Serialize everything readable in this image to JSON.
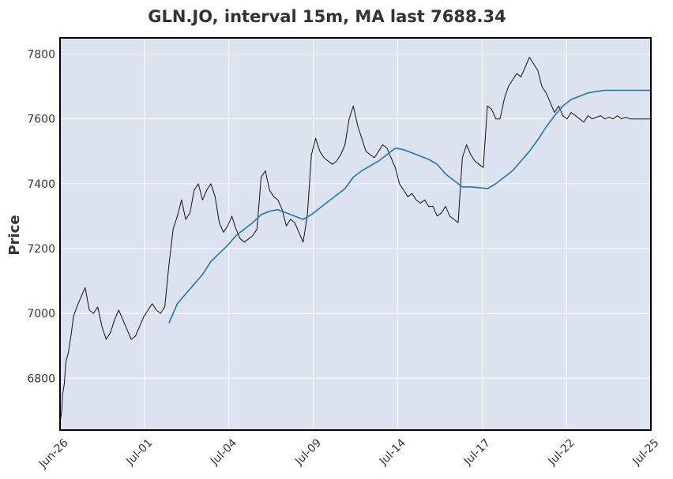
{
  "chart_data": {
    "type": "line",
    "title": "GLN.JO, interval 15m, MA last 7688.34",
    "xlabel": "",
    "ylabel": "Price",
    "ylim": [
      6640,
      7850
    ],
    "yticks": [
      6800,
      7000,
      7200,
      7400,
      7600,
      7800
    ],
    "xticks": [
      "Jun-26",
      "Jul-01",
      "Jul-04",
      "Jul-09",
      "Jul-14",
      "Jul-17",
      "Jul-22",
      "Jul-25"
    ],
    "grid": true,
    "colors": {
      "price": "#111111",
      "ma": "#1f77b4",
      "background": "#dde2ef",
      "grid": "#ffffff"
    },
    "series": [
      {
        "kind": "price",
        "x": [
          0,
          0.2,
          0.3,
          0.5,
          0.7,
          1.0,
          1.3,
          1.6,
          2.0,
          2.5,
          3.0,
          3.5,
          4.0,
          4.5,
          5.0,
          5.5,
          6.0,
          6.5,
          7.0,
          7.5,
          8.0,
          8.5,
          9.0,
          9.5,
          10.0,
          10.5,
          11.0,
          11.5,
          12.0,
          12.5,
          13.0,
          13.5,
          14.0,
          14.5,
          15.0,
          15.5,
          16.0,
          16.5,
          17.0,
          17.5,
          18.0,
          18.5,
          19.0,
          19.5,
          20.0,
          20.5,
          21.0,
          21.5,
          22.0,
          22.5,
          23.0,
          23.5,
          24.0,
          24.5,
          25.0,
          25.5,
          26.0,
          26.5,
          27.0,
          27.5,
          28.0,
          28.5,
          29.0,
          29.5,
          30.0,
          30.5,
          31.0,
          31.5,
          32.0,
          32.5,
          33.0,
          33.5,
          34.0,
          34.5,
          35.0,
          35.5,
          36.0,
          36.5,
          37.0,
          37.5,
          38.0,
          38.5,
          39.0,
          39.5,
          40.0,
          40.5,
          41.0,
          41.5,
          42.0,
          42.5,
          43.0,
          43.5,
          44.0,
          44.5,
          45.0,
          45.5,
          46.0,
          46.5,
          47.0,
          47.5,
          48.0,
          48.5,
          49.0,
          49.5,
          50.0,
          50.5,
          51.0,
          51.5,
          52.0,
          52.5,
          53.0,
          53.5,
          54.0,
          54.5,
          55.0,
          55.5,
          56.0,
          56.5,
          57.0,
          57.5,
          58.0,
          58.5,
          59.0,
          59.5,
          60.0,
          60.5,
          61.0,
          61.5,
          62.0,
          62.5,
          63.0,
          63.5,
          64.0,
          64.5,
          65.0,
          65.5,
          66.0,
          66.5,
          67.0,
          67.5,
          68.0,
          68.5,
          69.0,
          69.5,
          70.0,
          70.5
        ],
        "y": [
          6660,
          6700,
          6750,
          6780,
          6850,
          6880,
          6930,
          6990,
          7020,
          7050,
          7080,
          7010,
          7000,
          7020,
          6960,
          6920,
          6940,
          6980,
          7010,
          6980,
          6950,
          6920,
          6930,
          6960,
          6990,
          7010,
          7030,
          7010,
          7000,
          7020,
          7150,
          7260,
          7300,
          7350,
          7290,
          7310,
          7380,
          7400,
          7350,
          7380,
          7400,
          7360,
          7280,
          7250,
          7270,
          7300,
          7260,
          7230,
          7220,
          7230,
          7240,
          7260,
          7420,
          7440,
          7380,
          7360,
          7350,
          7320,
          7270,
          7290,
          7280,
          7250,
          7220,
          7300,
          7490,
          7540,
          7500,
          7480,
          7470,
          7460,
          7470,
          7490,
          7520,
          7600,
          7640,
          7580,
          7540,
          7500,
          7490,
          7480,
          7500,
          7520,
          7510,
          7480,
          7450,
          7400,
          7380,
          7360,
          7370,
          7350,
          7340,
          7350,
          7330,
          7330,
          7300,
          7310,
          7330,
          7300,
          7290,
          7280,
          7480,
          7520,
          7490,
          7470,
          7460,
          7450,
          7640,
          7630,
          7600,
          7600,
          7660,
          7700,
          7720,
          7740,
          7730,
          7760,
          7790,
          7770,
          7750,
          7700,
          7680,
          7650,
          7620,
          7640,
          7610,
          7600,
          7620,
          7610,
          7600,
          7590,
          7610,
          7600,
          7605,
          7610,
          7600,
          7605,
          7600,
          7610,
          7600,
          7605,
          7600,
          7600,
          7600,
          7600,
          7600,
          7600
        ]
      },
      {
        "kind": "ma",
        "x": [
          13.0,
          14.0,
          15.0,
          16.0,
          17.0,
          18.0,
          19.0,
          20.0,
          21.0,
          22.0,
          23.0,
          24.0,
          25.0,
          26.0,
          27.0,
          28.0,
          29.0,
          30.0,
          31.0,
          32.0,
          33.0,
          34.0,
          35.0,
          36.0,
          37.0,
          38.0,
          39.0,
          40.0,
          41.0,
          42.0,
          43.0,
          44.0,
          45.0,
          46.0,
          47.0,
          48.0,
          49.0,
          50.0,
          51.0,
          52.0,
          53.0,
          54.0,
          55.0,
          56.0,
          57.0,
          58.0,
          59.0,
          60.0,
          61.0,
          62.0,
          63.0,
          64.0,
          65.0,
          66.0,
          67.0,
          68.0,
          69.0,
          70.0,
          70.5
        ],
        "y": [
          6970,
          7030,
          7060,
          7090,
          7120,
          7160,
          7185,
          7210,
          7240,
          7260,
          7280,
          7305,
          7315,
          7320,
          7310,
          7300,
          7290,
          7305,
          7325,
          7345,
          7365,
          7385,
          7420,
          7440,
          7455,
          7470,
          7490,
          7510,
          7505,
          7495,
          7485,
          7475,
          7460,
          7430,
          7410,
          7390,
          7390,
          7388,
          7385,
          7400,
          7420,
          7440,
          7470,
          7500,
          7535,
          7575,
          7610,
          7640,
          7660,
          7670,
          7680,
          7685,
          7688,
          7688,
          7688,
          7688,
          7688,
          7688,
          7688
        ]
      }
    ]
  }
}
